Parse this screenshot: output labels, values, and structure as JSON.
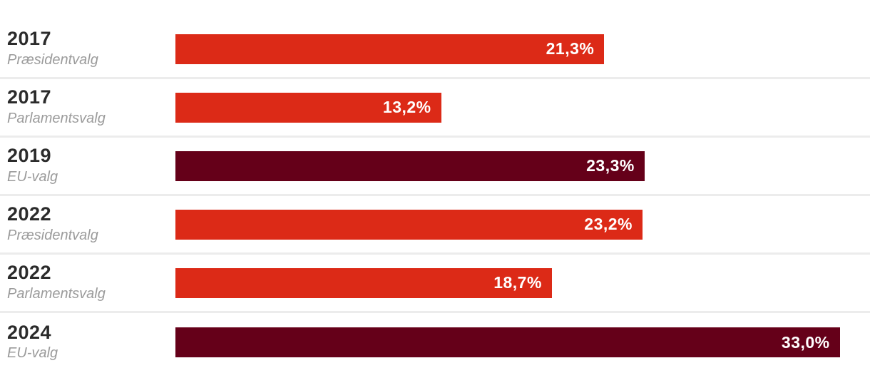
{
  "chart_data": {
    "type": "bar",
    "orientation": "horizontal",
    "title": "",
    "xlabel": "",
    "ylabel": "",
    "xlim": [
      0,
      34.5
    ],
    "grid": false,
    "legend": false,
    "value_suffix": "%",
    "decimal_separator": ",",
    "categories": [
      "2017 Præsidentvalg",
      "2017 Parlamentsvalg",
      "2019 EU-valg",
      "2022 Præsidentvalg",
      "2022 Parlamentsvalg",
      "2024 EU-valg"
    ],
    "values": [
      21.3,
      13.2,
      23.3,
      23.2,
      18.7,
      33.0
    ],
    "rows": [
      {
        "year": "2017",
        "election": "Præsidentvalg",
        "value": 21.3,
        "value_label": "21,3%",
        "color_key": "bar_red"
      },
      {
        "year": "2017",
        "election": "Parlamentsvalg",
        "value": 13.2,
        "value_label": "13,2%",
        "color_key": "bar_red"
      },
      {
        "year": "2019",
        "election": "EU-valg",
        "value": 23.3,
        "value_label": "23,3%",
        "color_key": "bar_dark_red"
      },
      {
        "year": "2022",
        "election": "Præsidentvalg",
        "value": 23.2,
        "value_label": "23,2%",
        "color_key": "bar_red"
      },
      {
        "year": "2022",
        "election": "Parlamentsvalg",
        "value": 18.7,
        "value_label": "18,7%",
        "color_key": "bar_red"
      },
      {
        "year": "2024",
        "election": "EU-valg",
        "value": 33.0,
        "value_label": "33,0%",
        "color_key": "bar_dark_red"
      }
    ]
  },
  "colors": {
    "bar_red": "#dc2a17",
    "bar_dark_red": "#650019",
    "year_text": "#2b2b2b",
    "subtitle_text": "#9b9b9b",
    "value_text": "#ffffff",
    "separator": "#ececec",
    "background": "#ffffff"
  }
}
